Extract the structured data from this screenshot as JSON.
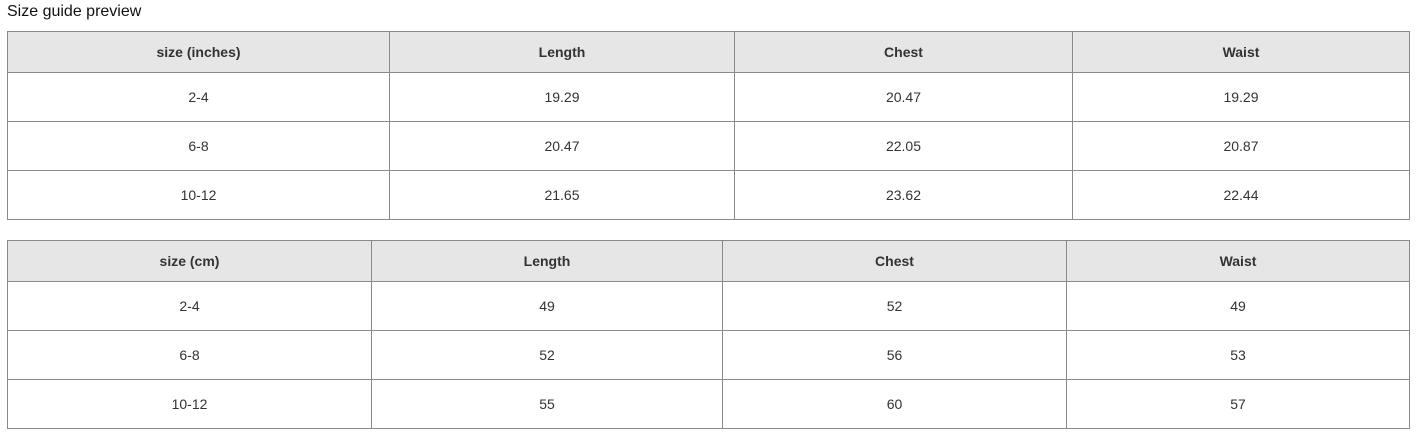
{
  "title": "Size guide preview",
  "tables": [
    {
      "headers": [
        "size (inches)",
        "Length",
        "Chest",
        "Waist"
      ],
      "rows": [
        [
          "2-4",
          "19.29",
          "20.47",
          "19.29"
        ],
        [
          "6-8",
          "20.47",
          "22.05",
          "20.87"
        ],
        [
          "10-12",
          "21.65",
          "23.62",
          "22.44"
        ]
      ]
    },
    {
      "headers": [
        "size (cm)",
        "Length",
        "Chest",
        "Waist"
      ],
      "rows": [
        [
          "2-4",
          "49",
          "52",
          "49"
        ],
        [
          "6-8",
          "52",
          "56",
          "53"
        ],
        [
          "10-12",
          "55",
          "60",
          "57"
        ]
      ]
    }
  ]
}
